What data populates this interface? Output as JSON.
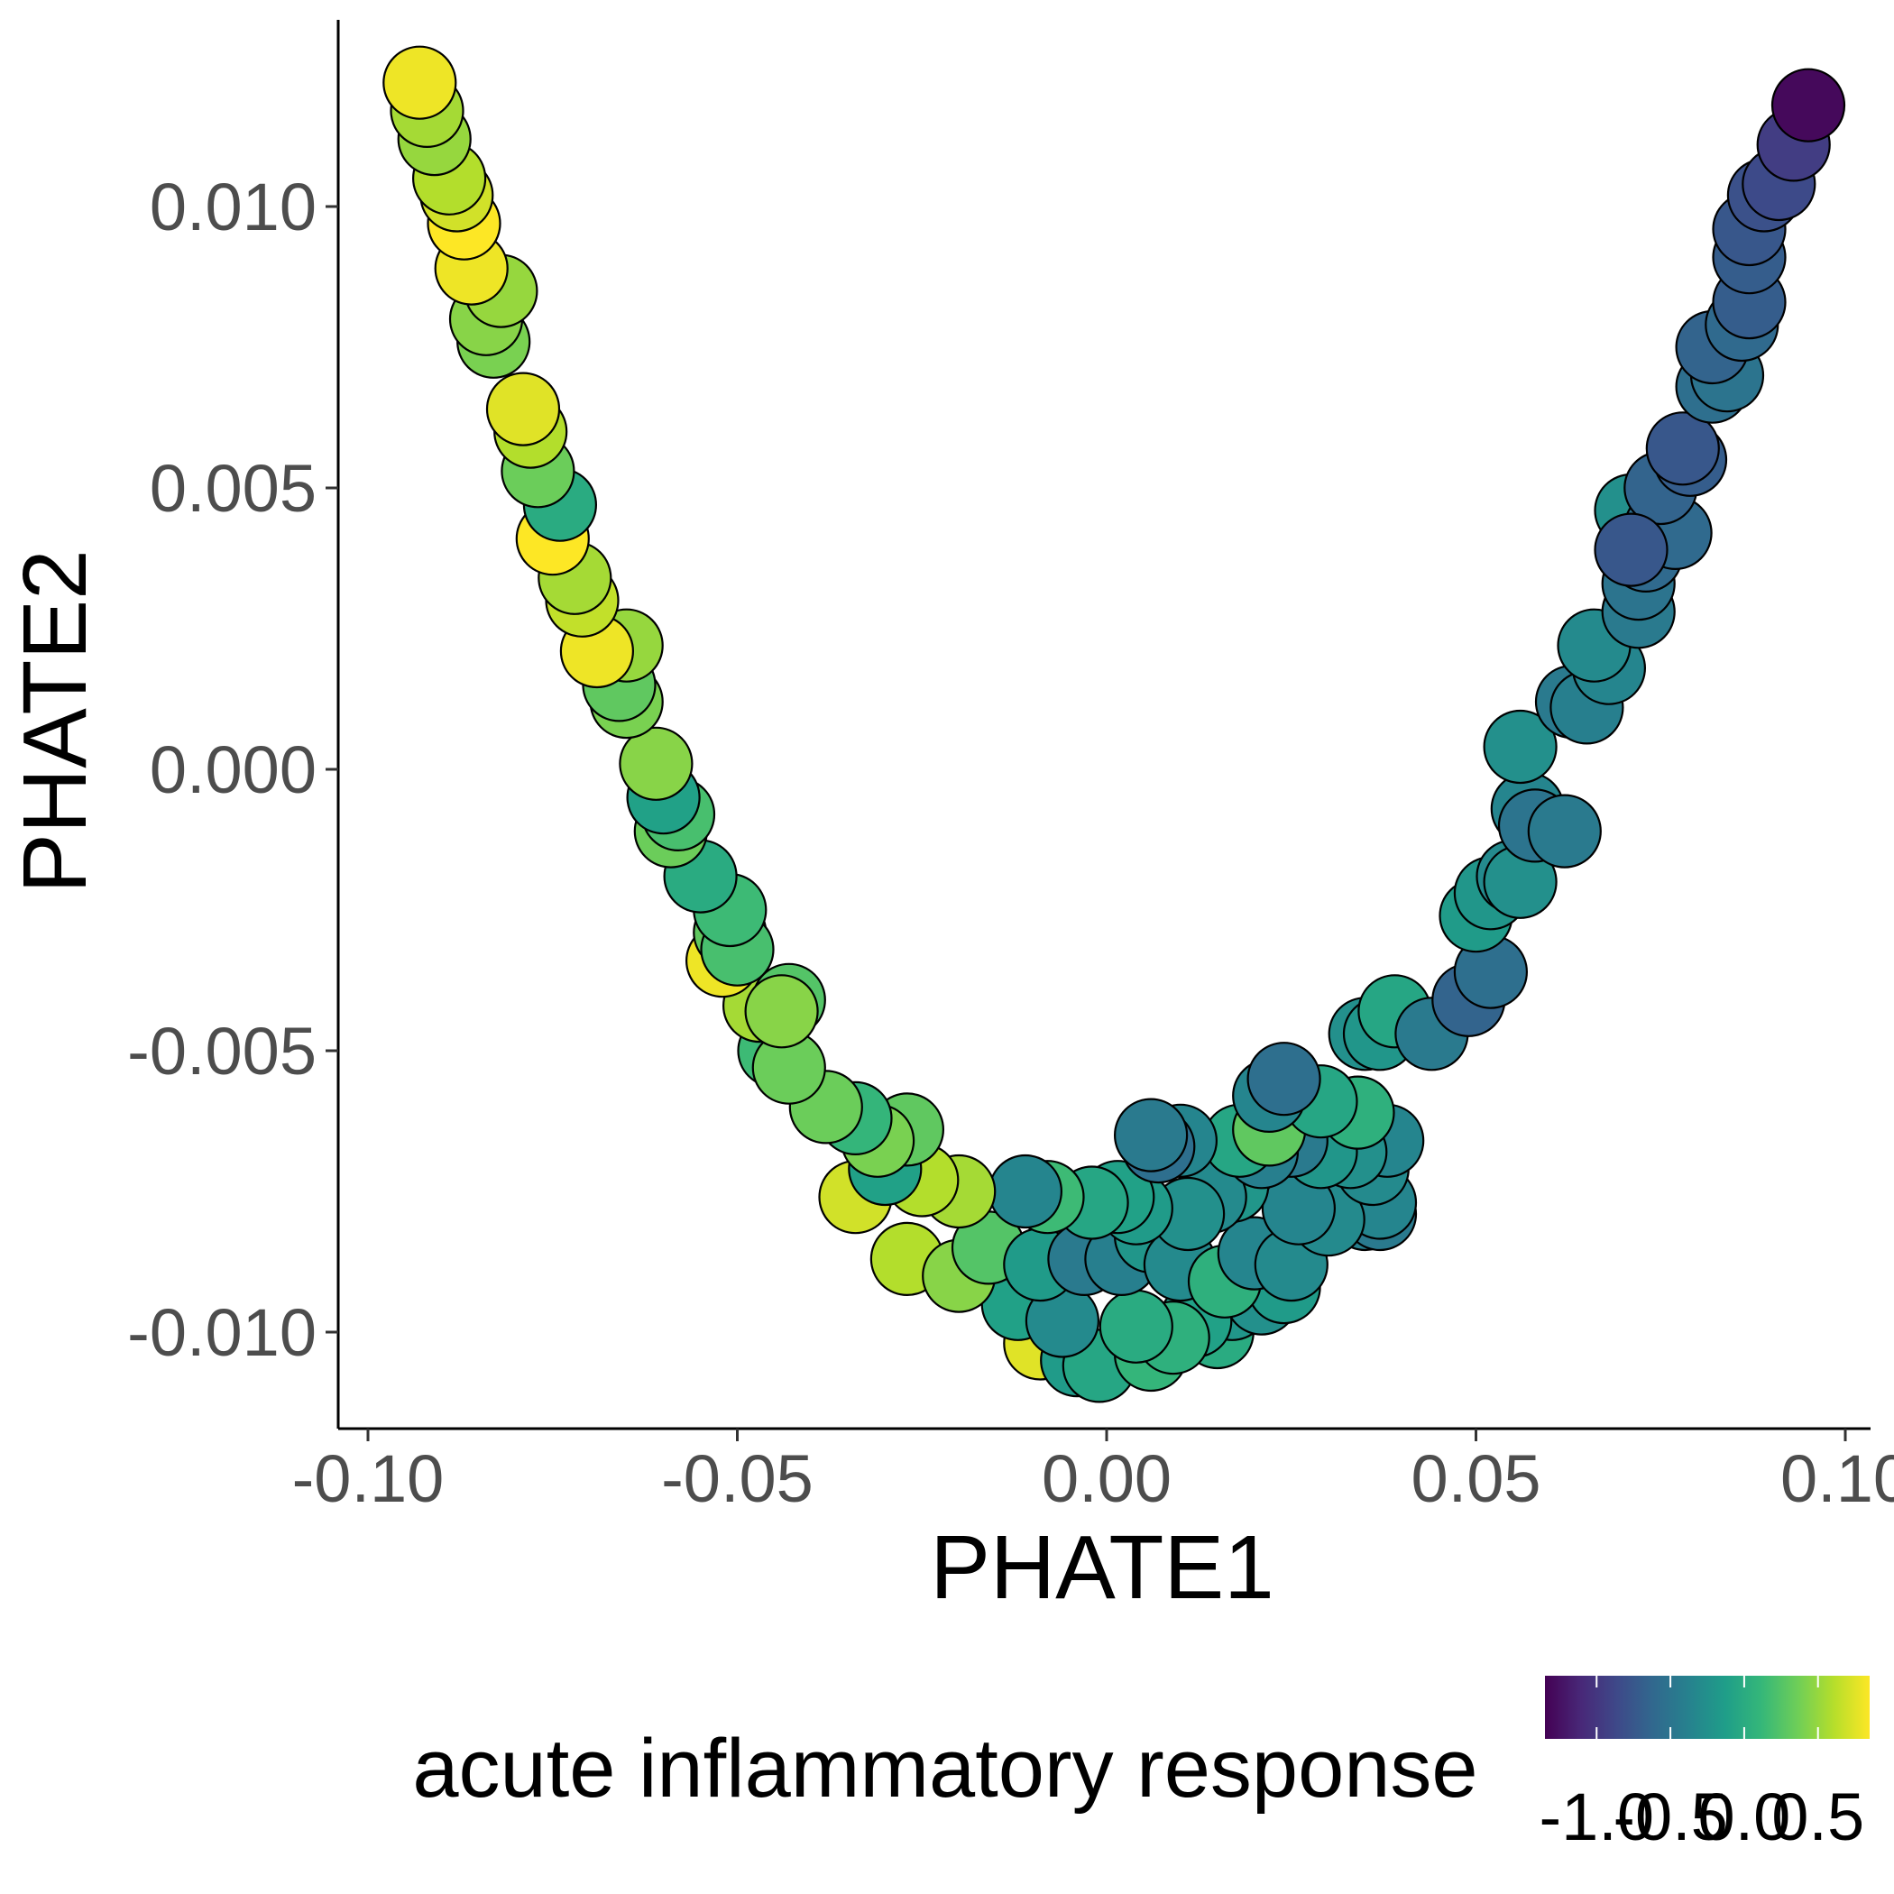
{
  "chart_data": {
    "type": "scatter",
    "xlabel": "PHATE1",
    "ylabel": "PHATE2",
    "xlim": [
      -0.1035,
      0.1035
    ],
    "ylim": [
      -0.0117,
      0.0133
    ],
    "x_ticks": [
      -0.1,
      -0.05,
      0.0,
      0.05,
      0.1
    ],
    "x_tick_labels": [
      "-0.10",
      "-0.05",
      "0.00",
      "0.05",
      "0.10"
    ],
    "y_ticks": [
      0.01,
      0.005,
      0.0,
      -0.005,
      -0.01
    ],
    "y_tick_labels": [
      "0.010",
      "0.005",
      "0.000",
      "-0.005",
      "-0.010"
    ],
    "grid": false,
    "color_legend": {
      "title": "acute inflammatory response",
      "position": "bottom",
      "range": [
        -1.35,
        0.85
      ],
      "ticks": [
        -1.0,
        -0.5,
        0.0,
        0.5
      ],
      "tick_labels": [
        "-1.0",
        "-0.5",
        "0.0",
        "0.5"
      ],
      "colormap": "viridis",
      "colors": [
        "#440154",
        "#482878",
        "#3e4989",
        "#31688e",
        "#26828e",
        "#1f9e89",
        "#35b779",
        "#6ece58",
        "#b5de2b",
        "#fde725"
      ]
    },
    "points": [
      {
        "x": 0.0055,
        "y": -0.0102,
        "v": -0.35
      },
      {
        "x": -0.009,
        "y": -0.0102,
        "v": 0.75
      },
      {
        "x": -0.004,
        "y": -0.0105,
        "v": -0.15
      },
      {
        "x": -0.001,
        "y": -0.0106,
        "v": -0.05
      },
      {
        "x": 0.006,
        "y": -0.0104,
        "v": 0.1
      },
      {
        "x": 0.015,
        "y": -0.01,
        "v": 0.0
      },
      {
        "x": 0.017,
        "y": -0.0095,
        "v": -0.2
      },
      {
        "x": 0.012,
        "y": -0.0098,
        "v": -0.1
      },
      {
        "x": 0.009,
        "y": -0.0101,
        "v": 0.05
      },
      {
        "x": -0.012,
        "y": -0.0095,
        "v": -0.1
      },
      {
        "x": -0.006,
        "y": -0.0098,
        "v": -0.3
      },
      {
        "x": 0.004,
        "y": -0.0099,
        "v": 0.0
      },
      {
        "x": 0.021,
        "y": -0.0094,
        "v": -0.25
      },
      {
        "x": 0.024,
        "y": -0.0092,
        "v": -0.15
      },
      {
        "x": -0.027,
        "y": -0.0087,
        "v": 0.6
      },
      {
        "x": -0.02,
        "y": -0.009,
        "v": 0.45
      },
      {
        "x": -0.016,
        "y": -0.0085,
        "v": 0.25
      },
      {
        "x": -0.009,
        "y": -0.0088,
        "v": -0.15
      },
      {
        "x": -0.003,
        "y": -0.0087,
        "v": -0.45
      },
      {
        "x": 0.002,
        "y": -0.0087,
        "v": -0.4
      },
      {
        "x": 0.006,
        "y": -0.0083,
        "v": -0.2
      },
      {
        "x": 0.01,
        "y": -0.0088,
        "v": -0.3
      },
      {
        "x": 0.016,
        "y": -0.0091,
        "v": 0.05
      },
      {
        "x": 0.02,
        "y": -0.0086,
        "v": -0.35
      },
      {
        "x": 0.025,
        "y": -0.0088,
        "v": -0.3
      },
      {
        "x": 0.035,
        "y": -0.0079,
        "v": -0.4
      },
      {
        "x": 0.037,
        "y": -0.0079,
        "v": -0.45
      },
      {
        "x": 0.037,
        "y": -0.0077,
        "v": -0.35
      },
      {
        "x": 0.03,
        "y": -0.008,
        "v": -0.3
      },
      {
        "x": 0.026,
        "y": -0.0078,
        "v": -0.35
      },
      {
        "x": 0.017,
        "y": -0.0074,
        "v": -0.2
      },
      {
        "x": 0.014,
        "y": -0.0076,
        "v": -0.3
      },
      {
        "x": 0.011,
        "y": -0.0079,
        "v": -0.25
      },
      {
        "x": 0.004,
        "y": -0.0078,
        "v": -0.15
      },
      {
        "x": 0.0015,
        "y": -0.0076,
        "v": -0.1
      },
      {
        "x": -0.002,
        "y": -0.0077,
        "v": -0.05
      },
      {
        "x": -0.008,
        "y": -0.0076,
        "v": 0.15
      },
      {
        "x": -0.011,
        "y": -0.0075,
        "v": -0.35
      },
      {
        "x": -0.02,
        "y": -0.0075,
        "v": 0.55
      },
      {
        "x": -0.025,
        "y": -0.0073,
        "v": 0.6
      },
      {
        "x": -0.034,
        "y": -0.0076,
        "v": 0.7
      },
      {
        "x": -0.03,
        "y": -0.0071,
        "v": -0.1
      },
      {
        "x": 0.036,
        "y": -0.0071,
        "v": -0.3
      },
      {
        "x": 0.038,
        "y": -0.0066,
        "v": -0.35
      },
      {
        "x": 0.033,
        "y": -0.0068,
        "v": -0.25
      },
      {
        "x": 0.029,
        "y": -0.0068,
        "v": -0.2
      },
      {
        "x": 0.025,
        "y": -0.0066,
        "v": -0.45
      },
      {
        "x": 0.021,
        "y": -0.0068,
        "v": -0.4
      },
      {
        "x": 0.018,
        "y": -0.0066,
        "v": -0.05
      },
      {
        "x": 0.01,
        "y": -0.0066,
        "v": -0.35
      },
      {
        "x": 0.007,
        "y": -0.0067,
        "v": -0.55
      },
      {
        "x": 0.006,
        "y": -0.0065,
        "v": -0.45
      },
      {
        "x": -0.027,
        "y": -0.0064,
        "v": 0.3
      },
      {
        "x": -0.031,
        "y": -0.0066,
        "v": 0.4
      },
      {
        "x": -0.034,
        "y": -0.0062,
        "v": 0.1
      },
      {
        "x": -0.038,
        "y": -0.006,
        "v": 0.35
      },
      {
        "x": 0.022,
        "y": -0.0064,
        "v": 0.3
      },
      {
        "x": 0.034,
        "y": -0.0061,
        "v": 0.05
      },
      {
        "x": 0.029,
        "y": -0.0059,
        "v": -0.05
      },
      {
        "x": 0.022,
        "y": -0.0058,
        "v": -0.35
      },
      {
        "x": 0.024,
        "y": -0.0055,
        "v": -0.55
      },
      {
        "x": -0.045,
        "y": -0.005,
        "v": 0.15
      },
      {
        "x": -0.043,
        "y": -0.0053,
        "v": 0.35
      },
      {
        "x": 0.035,
        "y": -0.0047,
        "v": -0.25
      },
      {
        "x": 0.037,
        "y": -0.0047,
        "v": -0.2
      },
      {
        "x": 0.039,
        "y": -0.0043,
        "v": -0.05
      },
      {
        "x": 0.044,
        "y": -0.0047,
        "v": -0.45
      },
      {
        "x": 0.049,
        "y": -0.0041,
        "v": -0.65
      },
      {
        "x": 0.052,
        "y": -0.0036,
        "v": -0.55
      },
      {
        "x": -0.047,
        "y": -0.0042,
        "v": 0.55
      },
      {
        "x": -0.043,
        "y": -0.0041,
        "v": 0.25
      },
      {
        "x": -0.044,
        "y": -0.0043,
        "v": 0.45
      },
      {
        "x": -0.052,
        "y": -0.0034,
        "v": 0.8
      },
      {
        "x": -0.051,
        "y": -0.0029,
        "v": 0.3
      },
      {
        "x": -0.05,
        "y": -0.0032,
        "v": 0.2
      },
      {
        "x": -0.051,
        "y": -0.0025,
        "v": 0.15
      },
      {
        "x": 0.05,
        "y": -0.0026,
        "v": -0.15
      },
      {
        "x": 0.052,
        "y": -0.0022,
        "v": -0.2
      },
      {
        "x": 0.055,
        "y": -0.0019,
        "v": -0.3
      },
      {
        "x": 0.056,
        "y": -0.002,
        "v": -0.25
      },
      {
        "x": -0.055,
        "y": -0.0019,
        "v": 0.0
      },
      {
        "x": -0.059,
        "y": -0.0011,
        "v": 0.35
      },
      {
        "x": -0.058,
        "y": -0.0008,
        "v": 0.2
      },
      {
        "x": -0.06,
        "y": -0.0005,
        "v": -0.1
      },
      {
        "x": 0.057,
        "y": -0.0007,
        "v": -0.35
      },
      {
        "x": 0.058,
        "y": -0.001,
        "v": -0.5
      },
      {
        "x": 0.062,
        "y": -0.0011,
        "v": -0.45
      },
      {
        "x": -0.061,
        "y": 0.0001,
        "v": 0.45
      },
      {
        "x": 0.056,
        "y": 0.0004,
        "v": -0.25
      },
      {
        "x": -0.065,
        "y": 0.0012,
        "v": 0.4
      },
      {
        "x": -0.066,
        "y": 0.0015,
        "v": 0.3
      },
      {
        "x": -0.065,
        "y": 0.0022,
        "v": 0.5
      },
      {
        "x": -0.069,
        "y": 0.0021,
        "v": 0.8
      },
      {
        "x": 0.063,
        "y": 0.0012,
        "v": -0.45
      },
      {
        "x": 0.065,
        "y": 0.0011,
        "v": -0.4
      },
      {
        "x": 0.068,
        "y": 0.0018,
        "v": -0.35
      },
      {
        "x": 0.066,
        "y": 0.0022,
        "v": -0.3
      },
      {
        "x": -0.071,
        "y": 0.003,
        "v": 0.65
      },
      {
        "x": -0.072,
        "y": 0.0034,
        "v": 0.55
      },
      {
        "x": -0.075,
        "y": 0.0041,
        "v": 0.9
      },
      {
        "x": -0.074,
        "y": 0.0047,
        "v": 0.0
      },
      {
        "x": 0.072,
        "y": 0.0028,
        "v": -0.45
      },
      {
        "x": 0.072,
        "y": 0.0033,
        "v": -0.5
      },
      {
        "x": 0.073,
        "y": 0.0038,
        "v": -0.6
      },
      {
        "x": 0.071,
        "y": 0.0046,
        "v": -0.25
      },
      {
        "x": 0.075,
        "y": 0.0043,
        "v": -0.55
      },
      {
        "x": 0.077,
        "y": 0.0042,
        "v": -0.6
      },
      {
        "x": 0.075,
        "y": 0.005,
        "v": -0.65
      },
      {
        "x": 0.071,
        "y": 0.0039,
        "v": -0.75
      },
      {
        "x": -0.077,
        "y": 0.0053,
        "v": 0.35
      },
      {
        "x": -0.078,
        "y": 0.006,
        "v": 0.6
      },
      {
        "x": -0.079,
        "y": 0.0064,
        "v": 0.75
      },
      {
        "x": 0.079,
        "y": 0.0055,
        "v": -0.7
      },
      {
        "x": 0.078,
        "y": 0.0057,
        "v": -0.75
      },
      {
        "x": 0.082,
        "y": 0.0068,
        "v": -0.55
      },
      {
        "x": 0.084,
        "y": 0.007,
        "v": -0.5
      },
      {
        "x": 0.082,
        "y": 0.0075,
        "v": -0.65
      },
      {
        "x": 0.086,
        "y": 0.0079,
        "v": -0.6
      },
      {
        "x": 0.087,
        "y": 0.0083,
        "v": -0.7
      },
      {
        "x": -0.083,
        "y": 0.0076,
        "v": 0.4
      },
      {
        "x": -0.084,
        "y": 0.008,
        "v": 0.45
      },
      {
        "x": -0.082,
        "y": 0.0085,
        "v": 0.5
      },
      {
        "x": -0.086,
        "y": 0.0089,
        "v": 0.8
      },
      {
        "x": -0.087,
        "y": 0.0097,
        "v": 0.95
      },
      {
        "x": -0.088,
        "y": 0.0102,
        "v": 0.7
      },
      {
        "x": -0.089,
        "y": 0.0105,
        "v": 0.6
      },
      {
        "x": 0.087,
        "y": 0.0091,
        "v": -0.7
      },
      {
        "x": 0.087,
        "y": 0.0096,
        "v": -0.75
      },
      {
        "x": 0.089,
        "y": 0.0102,
        "v": -0.8
      },
      {
        "x": 0.091,
        "y": 0.0104,
        "v": -0.85
      },
      {
        "x": 0.093,
        "y": 0.0111,
        "v": -0.95
      },
      {
        "x": -0.091,
        "y": 0.0112,
        "v": 0.5
      },
      {
        "x": -0.092,
        "y": 0.0117,
        "v": 0.55
      },
      {
        "x": -0.093,
        "y": 0.0122,
        "v": 0.8
      },
      {
        "x": 0.095,
        "y": 0.0118,
        "v": -1.3
      }
    ]
  }
}
